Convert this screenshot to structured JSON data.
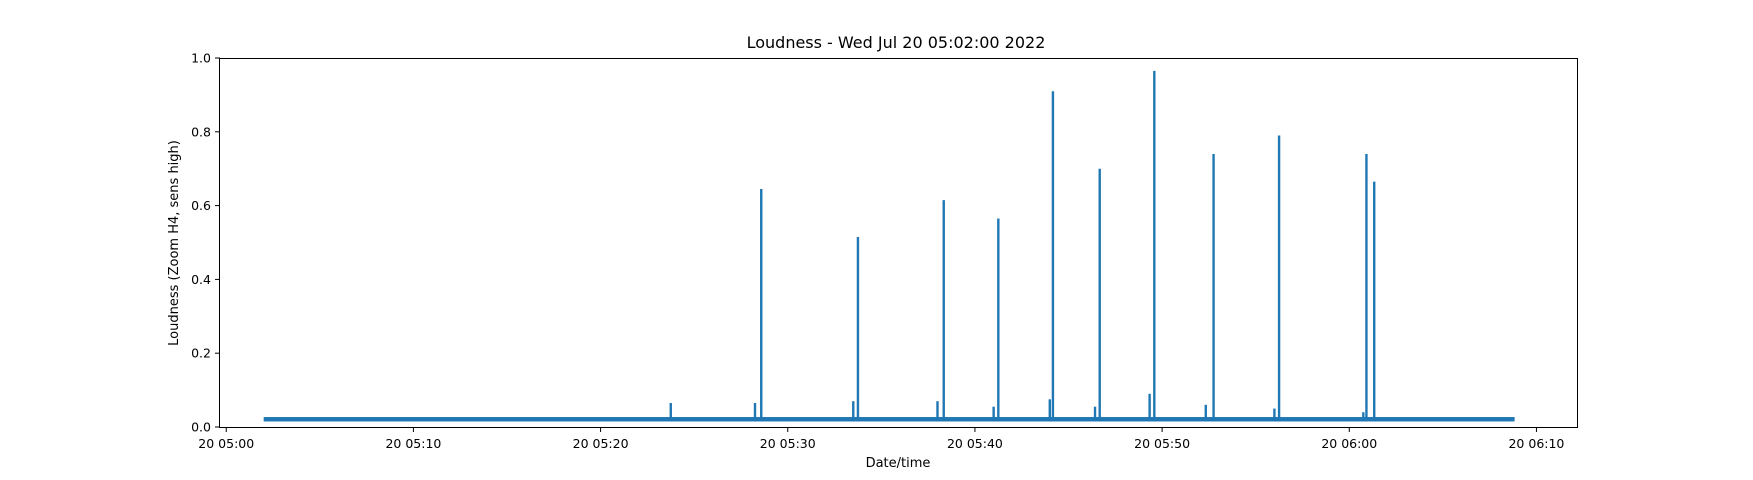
{
  "chart_data": {
    "type": "line",
    "title": "Loudness - Wed Jul 20 05:02:00 2022",
    "xlabel": "Date/time",
    "ylabel": "Loudness (Zoom H4, sens high)",
    "xlim": [
      "2022-07-20 04:59:40",
      "2022-07-20 06:12:10"
    ],
    "ylim": [
      0,
      1.0
    ],
    "grid": false,
    "color": "#1f77b4",
    "x_ticks": [
      {
        "t": "2022-07-20 05:00:00",
        "label": "20 05:00"
      },
      {
        "t": "2022-07-20 05:10:00",
        "label": "20 05:10"
      },
      {
        "t": "2022-07-20 05:20:00",
        "label": "20 05:20"
      },
      {
        "t": "2022-07-20 05:30:00",
        "label": "20 05:30"
      },
      {
        "t": "2022-07-20 05:40:00",
        "label": "20 05:40"
      },
      {
        "t": "2022-07-20 05:50:00",
        "label": "20 05:50"
      },
      {
        "t": "2022-07-20 06:00:00",
        "label": "20 06:00"
      },
      {
        "t": "2022-07-20 06:10:00",
        "label": "20 06:10"
      }
    ],
    "y_ticks": [
      {
        "v": 0.0,
        "label": "0.0"
      },
      {
        "v": 0.2,
        "label": "0.2"
      },
      {
        "v": 0.4,
        "label": "0.4"
      },
      {
        "v": 0.6,
        "label": "0.6"
      },
      {
        "v": 0.8,
        "label": "0.8"
      },
      {
        "v": 1.0,
        "label": "1.0"
      }
    ],
    "series": [
      {
        "baseline": {
          "start": "2022-07-20 05:02:00",
          "end": "2022-07-20 06:08:50",
          "low": 0.015,
          "high": 0.027
        },
        "peaks": [
          {
            "t": "2022-07-20 05:23:45",
            "value": 0.065
          },
          {
            "t": "2022-07-20 05:28:15",
            "value": 0.065
          },
          {
            "t": "2022-07-20 05:28:35",
            "value": 0.645
          },
          {
            "t": "2022-07-20 05:33:30",
            "value": 0.07
          },
          {
            "t": "2022-07-20 05:33:45",
            "value": 0.515
          },
          {
            "t": "2022-07-20 05:38:00",
            "value": 0.07
          },
          {
            "t": "2022-07-20 05:38:20",
            "value": 0.615
          },
          {
            "t": "2022-07-20 05:41:00",
            "value": 0.055
          },
          {
            "t": "2022-07-20 05:41:15",
            "value": 0.565
          },
          {
            "t": "2022-07-20 05:44:00",
            "value": 0.075
          },
          {
            "t": "2022-07-20 05:44:10",
            "value": 0.91
          },
          {
            "t": "2022-07-20 05:46:25",
            "value": 0.055
          },
          {
            "t": "2022-07-20 05:46:40",
            "value": 0.7
          },
          {
            "t": "2022-07-20 05:49:20",
            "value": 0.09
          },
          {
            "t": "2022-07-20 05:49:35",
            "value": 0.965
          },
          {
            "t": "2022-07-20 05:52:20",
            "value": 0.06
          },
          {
            "t": "2022-07-20 05:52:45",
            "value": 0.74
          },
          {
            "t": "2022-07-20 05:56:00",
            "value": 0.05
          },
          {
            "t": "2022-07-20 05:56:15",
            "value": 0.79
          },
          {
            "t": "2022-07-20 06:00:45",
            "value": 0.04
          },
          {
            "t": "2022-07-20 06:00:55",
            "value": 0.74
          },
          {
            "t": "2022-07-20 06:01:20",
            "value": 0.665
          }
        ]
      }
    ]
  }
}
